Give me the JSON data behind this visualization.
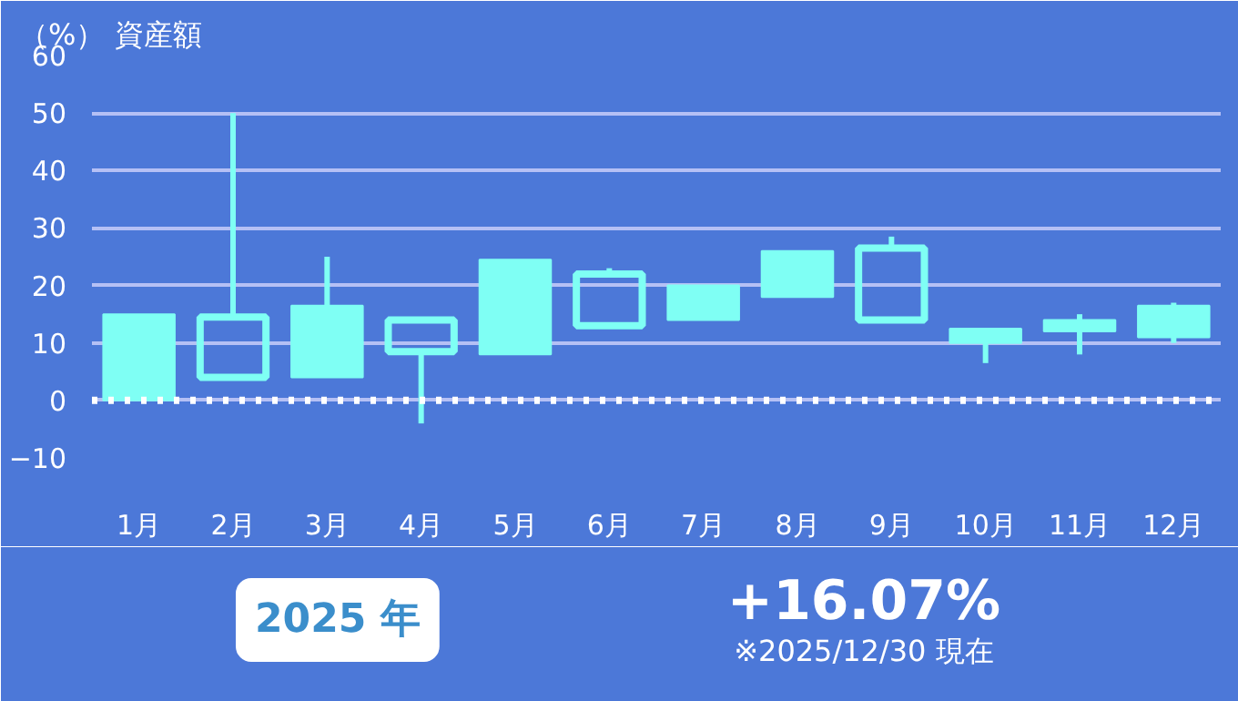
{
  "chart_data": {
    "type": "candlestick",
    "ylabel": "（%） 資産額",
    "categories": [
      "1月",
      "2月",
      "3月",
      "4月",
      "5月",
      "6月",
      "7月",
      "8月",
      "9月",
      "10月",
      "11月",
      "12月"
    ],
    "ohlc": [
      [
        0,
        15,
        0,
        15
      ],
      [
        14.5,
        50,
        4,
        4
      ],
      [
        4,
        25,
        4,
        16.5
      ],
      [
        14,
        14,
        -4,
        8.5
      ],
      [
        8,
        24.5,
        8,
        24.5
      ],
      [
        22,
        23,
        12.5,
        13
      ],
      [
        14,
        20,
        14,
        20
      ],
      [
        18,
        26,
        18,
        26
      ],
      [
        26.5,
        28.5,
        14,
        14
      ],
      [
        10,
        12.5,
        6.5,
        12.5
      ],
      [
        12,
        15,
        8,
        14
      ],
      [
        11,
        17,
        10,
        16.5
      ]
    ],
    "color": "#7ffff4",
    "ylim": [
      -10,
      60
    ],
    "yticks": [
      -10,
      0,
      10,
      20,
      30,
      40,
      50,
      60
    ],
    "grid": "y",
    "ref_lines": [
      {
        "axis": "y",
        "value": 0,
        "color": "#ffffff",
        "line_style": "dotted"
      }
    ],
    "annotations": [
      "2025 年",
      "+16.07%",
      "※2025/12/30 現在"
    ]
  }
}
